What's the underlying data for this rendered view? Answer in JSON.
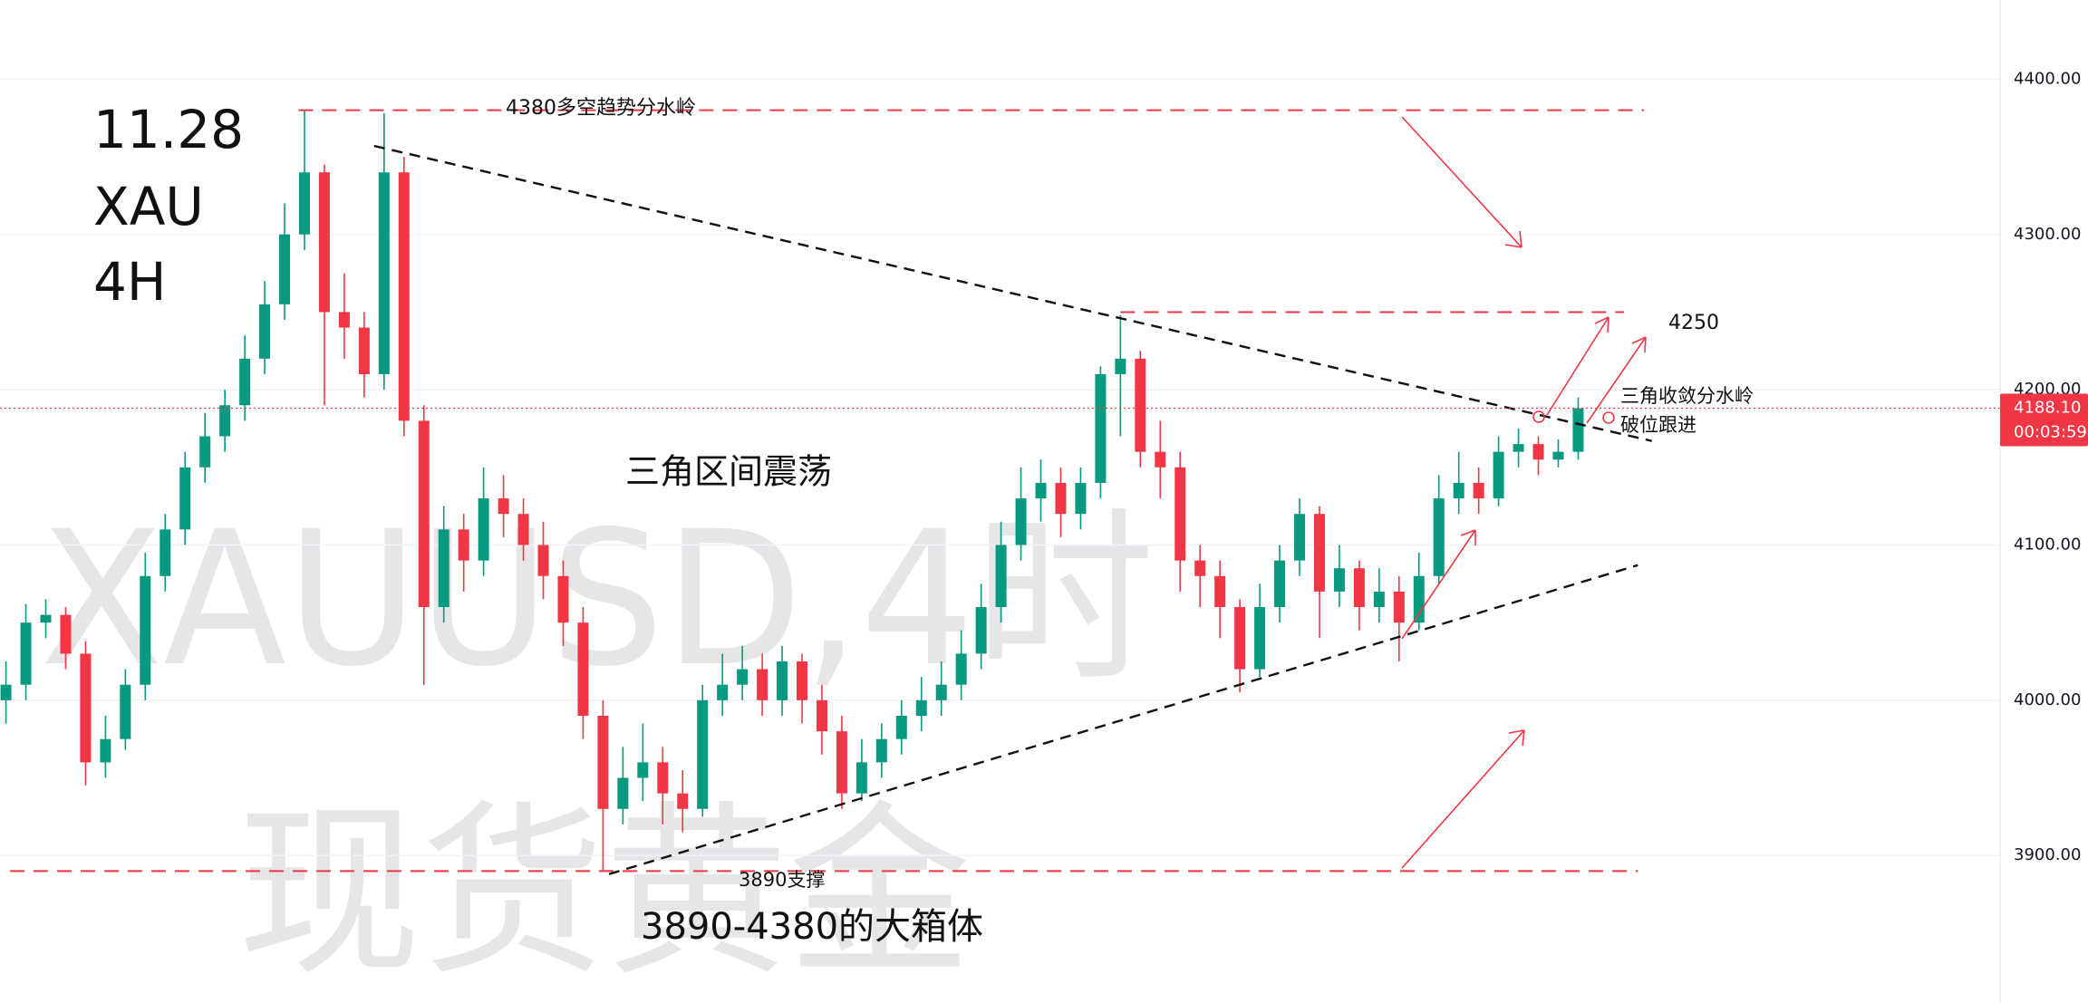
{
  "chart_data": {
    "type": "candlestick",
    "title_lines": [
      "11.28",
      "XAU",
      "4H"
    ],
    "watermarks": [
      "XAUUSD,4时",
      "现货黄金"
    ],
    "annotations": [
      "4380多空趋势分水岭",
      "三角区间震荡",
      "4250",
      "三角收敛分水岭",
      "破位跟进",
      "3890支撑",
      "3890-4380的大箱体"
    ],
    "up_color": "#089981",
    "down_color": "#f23645",
    "level_color": "#f23645",
    "trend_color": "#111111",
    "xlim": [
      -0.3,
      100.2
    ],
    "ylim": [
      3805,
      4451
    ],
    "yticks": [
      {
        "value": 4400,
        "label": "4400.00"
      },
      {
        "value": 4300,
        "label": "4300.00"
      },
      {
        "value": 4200,
        "label": "4200.00"
      },
      {
        "value": 4100,
        "label": "4100.00"
      },
      {
        "value": 4000,
        "label": "4000.00"
      },
      {
        "value": 3900,
        "label": "3900.00"
      }
    ],
    "grid": true,
    "last_price": {
      "value": 4188.1,
      "label": "4188.10"
    },
    "countdown": "00:03:59",
    "open": [
      4000,
      4010,
      4050,
      4055,
      4030,
      3960,
      3975,
      4010,
      4080,
      4110,
      4150,
      4170,
      4190,
      4220,
      4255,
      4300,
      4340,
      4250,
      4240,
      4210,
      4340,
      4180,
      4060,
      4110,
      4090,
      4130,
      4120,
      4100,
      4080,
      4050,
      3990,
      3930,
      3950,
      3960,
      3940,
      3930,
      4000,
      4010,
      4020,
      4000,
      4025,
      4000,
      3980,
      3940,
      3960,
      3975,
      3990,
      4000,
      4010,
      4030,
      4060,
      4100,
      4130,
      4140,
      4120,
      4140,
      4210,
      4220,
      4160,
      4150,
      4090,
      4080,
      4060,
      4020,
      4060,
      4090,
      4120,
      4070,
      4085,
      4060,
      4070,
      4050,
      4080,
      4130,
      4140,
      4130,
      4160,
      4165,
      4155,
      4160
    ],
    "high": [
      4025,
      4062,
      4065,
      4060,
      4038,
      3990,
      4020,
      4095,
      4120,
      4160,
      4185,
      4200,
      4235,
      4270,
      4320,
      4380,
      4345,
      4275,
      4250,
      4378,
      4350,
      4190,
      4125,
      4120,
      4150,
      4145,
      4130,
      4115,
      4090,
      4060,
      4000,
      3970,
      3985,
      3970,
      3955,
      4010,
      4030,
      4035,
      4030,
      4035,
      4030,
      4010,
      3990,
      3975,
      3985,
      4000,
      4015,
      4025,
      4045,
      4075,
      4115,
      4150,
      4155,
      4150,
      4150,
      4215,
      4248,
      4225,
      4180,
      4160,
      4100,
      4090,
      4065,
      4075,
      4100,
      4130,
      4125,
      4100,
      4090,
      4085,
      4080,
      4095,
      4145,
      4160,
      4150,
      4170,
      4175,
      4170,
      4168,
      4195
    ],
    "low": [
      3985,
      4000,
      4040,
      4020,
      3945,
      3950,
      3968,
      4000,
      4070,
      4100,
      4140,
      4160,
      4180,
      4210,
      4245,
      4290,
      4190,
      4220,
      4195,
      4200,
      4170,
      4010,
      4050,
      4070,
      4080,
      4105,
      4090,
      4065,
      4035,
      3975,
      3890,
      3920,
      3935,
      3920,
      3915,
      3925,
      3990,
      4000,
      3990,
      3990,
      3985,
      3965,
      3930,
      3935,
      3950,
      3965,
      3980,
      3990,
      4000,
      4020,
      4050,
      4090,
      4115,
      4105,
      4110,
      4130,
      4170,
      4150,
      4130,
      4070,
      4060,
      4040,
      4005,
      4015,
      4050,
      4080,
      4040,
      4060,
      4045,
      4050,
      4025,
      4045,
      4075,
      4120,
      4120,
      4125,
      4150,
      4145,
      4150,
      4155
    ],
    "close": [
      4010,
      4050,
      4055,
      4030,
      3960,
      3975,
      4010,
      4080,
      4110,
      4150,
      4170,
      4190,
      4220,
      4255,
      4300,
      4340,
      4250,
      4240,
      4210,
      4340,
      4180,
      4060,
      4110,
      4090,
      4130,
      4120,
      4100,
      4080,
      4050,
      3990,
      3930,
      3950,
      3960,
      3940,
      3930,
      4000,
      4010,
      4020,
      4000,
      4025,
      4000,
      3980,
      3940,
      3960,
      3975,
      3990,
      4000,
      4010,
      4030,
      4060,
      4100,
      4130,
      4140,
      4120,
      4140,
      4210,
      4220,
      4160,
      4150,
      4090,
      4080,
      4060,
      4020,
      4060,
      4090,
      4120,
      4070,
      4085,
      4060,
      4070,
      4050,
      4080,
      4130,
      4140,
      4130,
      4160,
      4165,
      4155,
      4160,
      4188.1
    ],
    "levels": [
      {
        "value": 4380,
        "from": 14.7,
        "to": 82.3
      },
      {
        "value": 4250,
        "from": 56,
        "to": 81.3
      },
      {
        "value": 3890,
        "from": 0.2,
        "to": 82
      }
    ],
    "trendlines": [
      {
        "x": [
          18.5,
          82.7
        ],
        "y": [
          4357,
          4167
        ]
      },
      {
        "x": [
          30.3,
          82
        ],
        "y": [
          3888,
          4087
        ]
      }
    ]
  }
}
